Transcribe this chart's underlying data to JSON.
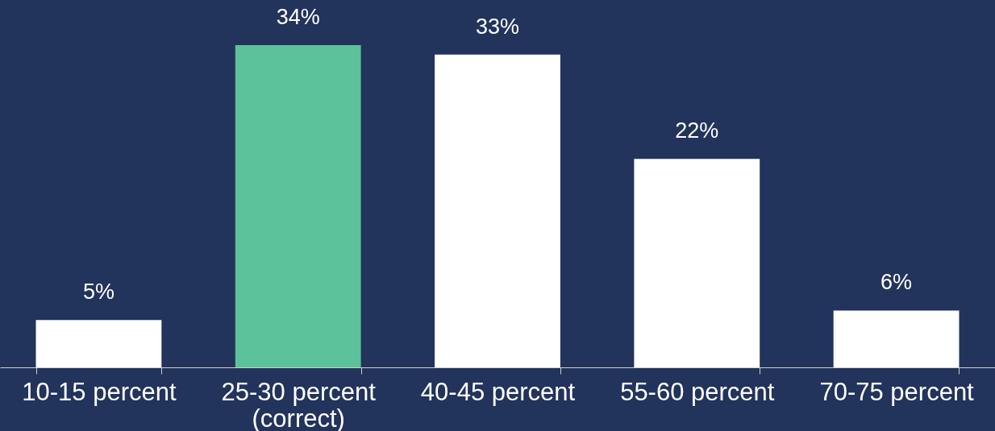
{
  "chart_data": {
    "type": "bar",
    "categories": [
      "10-15 percent",
      "25-30 percent\n(correct)",
      "40-45 percent",
      "55-60 percent",
      "70-75 percent"
    ],
    "values": [
      5,
      34,
      33,
      22,
      6
    ],
    "colors": [
      "#ffffff",
      "#5bc29b",
      "#ffffff",
      "#ffffff",
      "#ffffff"
    ],
    "value_labels": [
      "5%",
      "34%",
      "33%",
      "22%",
      "6%"
    ],
    "grid": false,
    "legend": false
  }
}
